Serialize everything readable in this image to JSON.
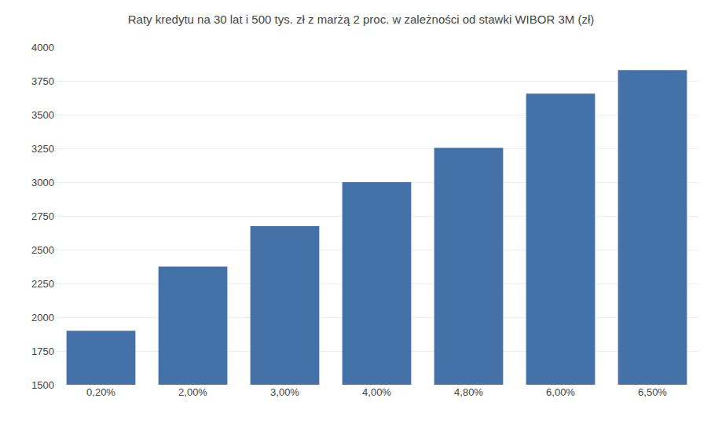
{
  "chart_data": {
    "type": "bar",
    "title": "Raty kredytu na 30 lat i 500 tys. zł z marżą 2 proc. w zależności od stawki WIBOR 3M (zł)",
    "categories": [
      "0,20%",
      "2,00%",
      "3,00%",
      "4,00%",
      "4,80%",
      "6,00%",
      "6,50%"
    ],
    "values": [
      1900,
      2375,
      2675,
      3000,
      3255,
      3655,
      3830
    ],
    "color": "#4472a8",
    "ylim": [
      1500,
      4000
    ],
    "yticks": [
      1500,
      1750,
      2000,
      2250,
      2500,
      2750,
      3000,
      3250,
      3500,
      3750,
      4000
    ],
    "grid": true
  }
}
